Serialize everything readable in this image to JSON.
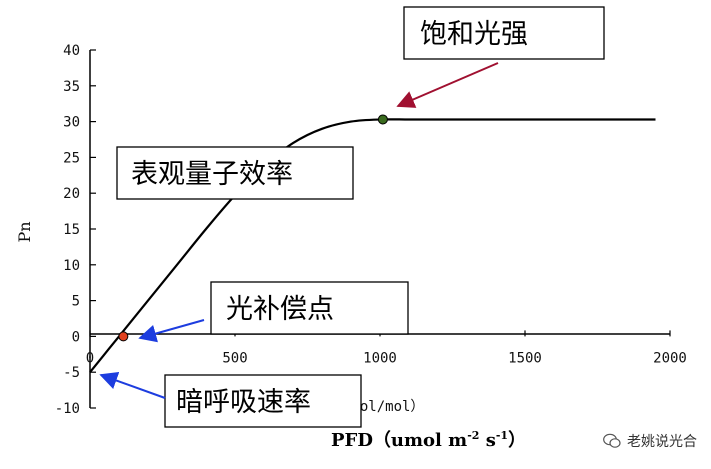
{
  "chart_data": {
    "type": "line",
    "xlabel": "PFD（umol m-2 s-1）",
    "xlabel_parts": {
      "main": "PFD（umol m",
      "sup1": "-2",
      "mid": " s",
      "sup2": "-1",
      "end": "）"
    },
    "xlabel_overlap_text": "umol/mol）",
    "ylabel": "Pn",
    "xlim": [
      0,
      2000
    ],
    "ylim": [
      -10,
      40
    ],
    "x_ticks": [
      0,
      500,
      1000,
      1500,
      2000
    ],
    "y_ticks": [
      -10,
      -5,
      0,
      5,
      10,
      15,
      20,
      25,
      30,
      35,
      40
    ],
    "series": [
      {
        "x": [
          0,
          50,
          100,
          200,
          300,
          400,
          500,
          600,
          700,
          800,
          900,
          1000,
          1100,
          1200,
          1400,
          1600,
          1800,
          1950
        ],
        "y": [
          -5,
          -2.5,
          0,
          5,
          10,
          15,
          19.7,
          23.8,
          27,
          29,
          30,
          30.3,
          30.3,
          30.3,
          30.3,
          30.3,
          30.3,
          30.3
        ]
      }
    ],
    "points": [
      {
        "x": 115,
        "y": 0,
        "color": "#e0401e"
      },
      {
        "x": 1010,
        "y": 30.3,
        "color": "#3a6b1e"
      }
    ],
    "annotations": [
      {
        "text": "饱和光强",
        "arrow_color": "#a01030"
      },
      {
        "text": "表观量子效率"
      },
      {
        "text": "光补偿点",
        "arrow_color": "#1d3ddf"
      },
      {
        "text": "暗呼吸速率",
        "arrow_color": "#1d3ddf"
      }
    ]
  },
  "watermark": "老姚说光合"
}
